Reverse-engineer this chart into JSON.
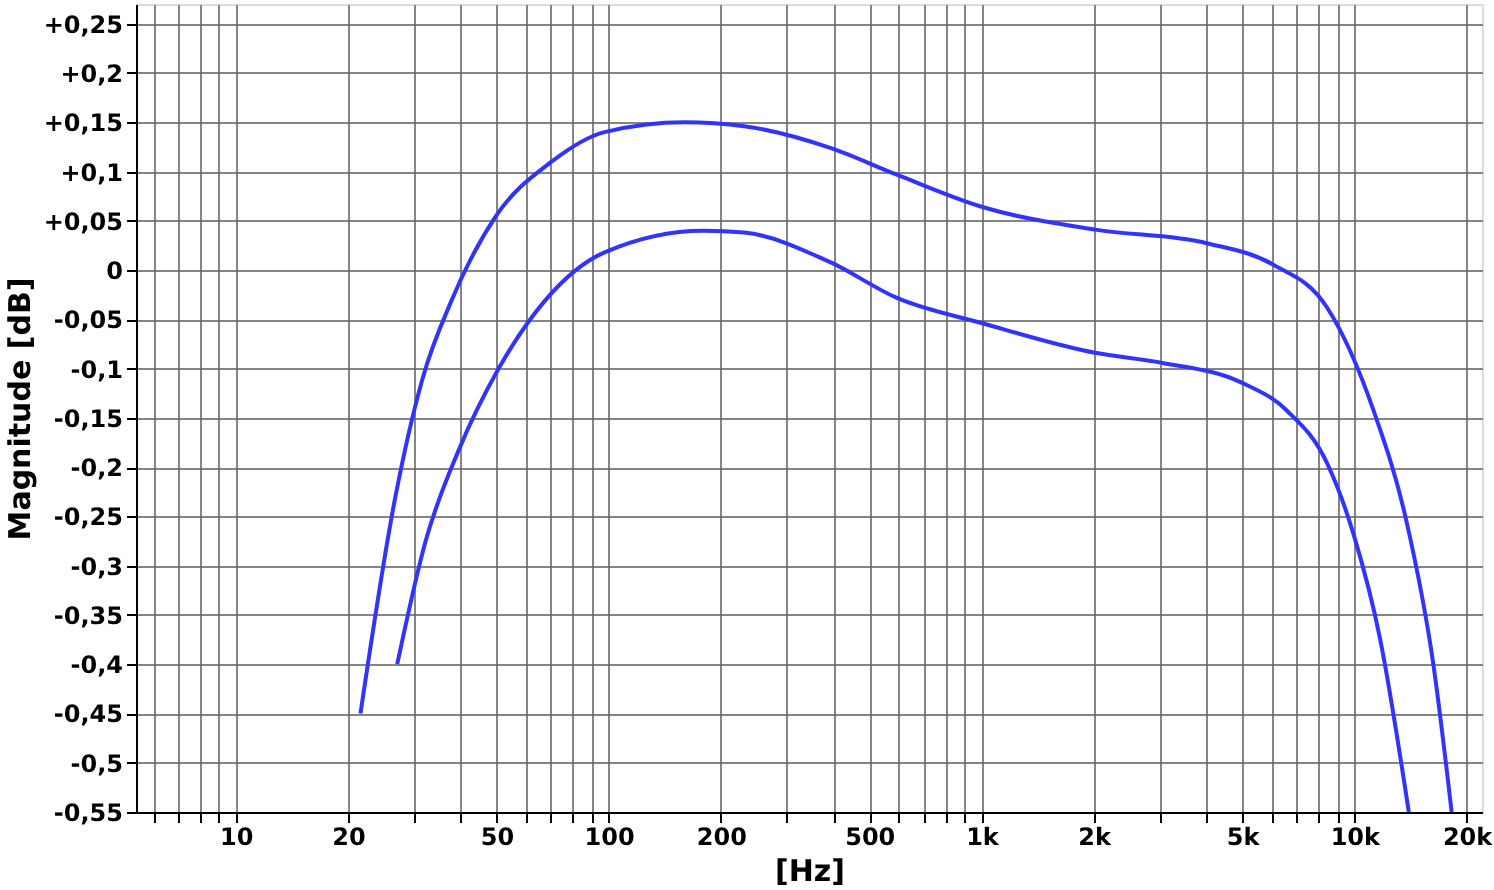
{
  "chart_data": {
    "type": "line",
    "xlabel": "[Hz]",
    "ylabel": "Magnitude [dB]",
    "log": "x",
    "grid": true,
    "legend": false,
    "marker": "none",
    "line_style": "solid",
    "xlim": [
      5.4,
      22000
    ],
    "ylim": [
      -0.55,
      0.27
    ],
    "xticks": [
      {
        "value": 6,
        "label": null
      },
      {
        "value": 7,
        "label": null
      },
      {
        "value": 8,
        "label": null
      },
      {
        "value": 9,
        "label": null
      },
      10,
      20,
      {
        "value": 30,
        "label": null
      },
      {
        "value": 40,
        "label": null
      },
      50,
      {
        "value": 60,
        "label": null
      },
      {
        "value": 70,
        "label": null
      },
      {
        "value": 80,
        "label": null
      },
      {
        "value": 90,
        "label": null
      },
      100,
      200,
      {
        "value": 300,
        "label": null
      },
      {
        "value": 400,
        "label": null
      },
      500,
      {
        "value": 600,
        "label": null
      },
      {
        "value": 700,
        "label": null
      },
      {
        "value": 800,
        "label": null
      },
      {
        "value": 900,
        "label": null
      },
      {
        "value": 1000,
        "label": "1k"
      },
      {
        "value": 2000,
        "label": "2k"
      },
      {
        "value": 3000,
        "label": null
      },
      {
        "value": 4000,
        "label": null
      },
      {
        "value": 5000,
        "label": "5k"
      },
      {
        "value": 6000,
        "label": null
      },
      {
        "value": 7000,
        "label": null
      },
      {
        "value": 8000,
        "label": null
      },
      {
        "value": 9000,
        "label": null
      },
      {
        "value": 10000,
        "label": "10k"
      },
      {
        "value": 20000,
        "label": "20k"
      }
    ],
    "yticks": [
      {
        "value": 0.25,
        "label": "+0,25"
      },
      {
        "value": 0.2,
        "label": "+0,2"
      },
      {
        "value": 0.15,
        "label": "+0,15"
      },
      {
        "value": 0.1,
        "label": "+0,1"
      },
      {
        "value": 0.05,
        "label": "+0,05"
      },
      0,
      {
        "value": -0.05,
        "label": "-0,05"
      },
      {
        "value": -0.1,
        "label": "-0,1"
      },
      {
        "value": -0.15,
        "label": "-0,15"
      },
      {
        "value": -0.2,
        "label": "-0,2"
      },
      {
        "value": -0.25,
        "label": "-0,25"
      },
      {
        "value": -0.3,
        "label": "-0,3"
      },
      {
        "value": -0.35,
        "label": "-0,35"
      },
      {
        "value": -0.4,
        "label": "-0,4"
      },
      {
        "value": -0.45,
        "label": "-0,45"
      },
      {
        "value": -0.5,
        "label": "-0,5"
      },
      {
        "value": -0.55,
        "label": "-0,55"
      }
    ],
    "series": [
      {
        "color": "#3333ff",
        "x": [
          21.6,
          26.8,
          31.7,
          38,
          49.7,
          70.3,
          97.5,
          160,
          231,
          393,
          591,
          1006,
          2018,
          4046,
          6095,
          8450,
          11270,
          13800,
          16290,
          18240
        ],
        "values": [
          -0.45,
          -0.23,
          -0.11,
          -0.03,
          0.054,
          0.11,
          0.14,
          0.15,
          0.146,
          0.124,
          0.097,
          0.064,
          0.041,
          0.027,
          0.005,
          -0.038,
          -0.143,
          -0.255,
          -0.4,
          -0.55
        ]
      },
      {
        "color": "#3333ff",
        "x": [
          27.1,
          32.3,
          39.6,
          50.7,
          67.5,
          97.5,
          180,
          231,
          393,
          591,
          1006,
          2018,
          3040,
          4970,
          6610,
          8450,
          9950,
          11720,
          14000
        ],
        "values": [
          -0.4,
          -0.275,
          -0.183,
          -0.1,
          -0.031,
          0.018,
          0.04,
          0.038,
          0.008,
          -0.028,
          -0.054,
          -0.084,
          -0.094,
          -0.114,
          -0.143,
          -0.196,
          -0.268,
          -0.374,
          -0.55
        ]
      }
    ]
  }
}
